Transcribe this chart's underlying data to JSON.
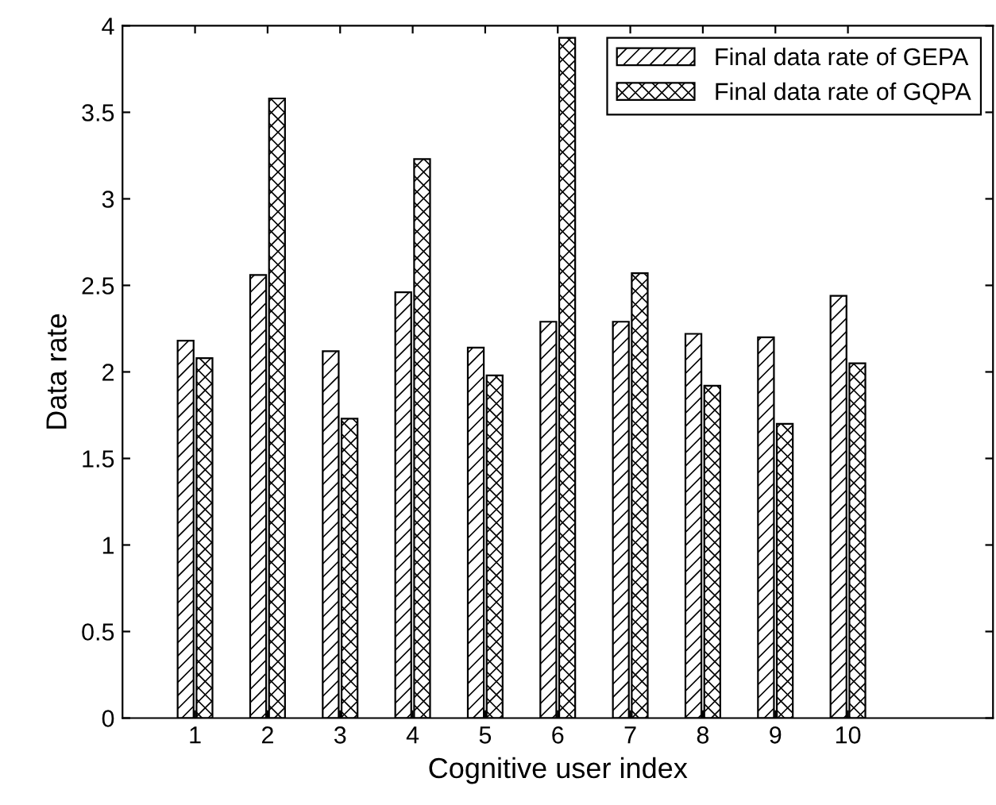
{
  "chart_data": {
    "type": "bar",
    "xlabel": "Cognitive user index",
    "ylabel": "Data rate",
    "x": [
      1,
      2,
      3,
      4,
      5,
      6,
      7,
      8,
      9,
      10
    ],
    "series": [
      {
        "name": "Final data rate of GEPA",
        "color": "#000000",
        "values": [
          2.18,
          2.56,
          2.12,
          2.46,
          2.14,
          2.29,
          2.29,
          2.22,
          2.2,
          2.44
        ]
      },
      {
        "name": "Final data rate of GQPA",
        "color": "#000000",
        "values": [
          2.08,
          3.58,
          1.73,
          3.23,
          1.98,
          3.93,
          2.57,
          1.92,
          1.7,
          2.05
        ]
      }
    ],
    "xlim": [
      0,
      12
    ],
    "xticks": [
      1,
      2,
      3,
      4,
      5,
      6,
      7,
      8,
      9,
      10
    ],
    "ylim": [
      0,
      4
    ],
    "yticks": [
      0,
      0.5,
      1,
      1.5,
      2,
      2.5,
      3,
      3.5,
      4
    ],
    "grid": false,
    "legend": "top right"
  }
}
